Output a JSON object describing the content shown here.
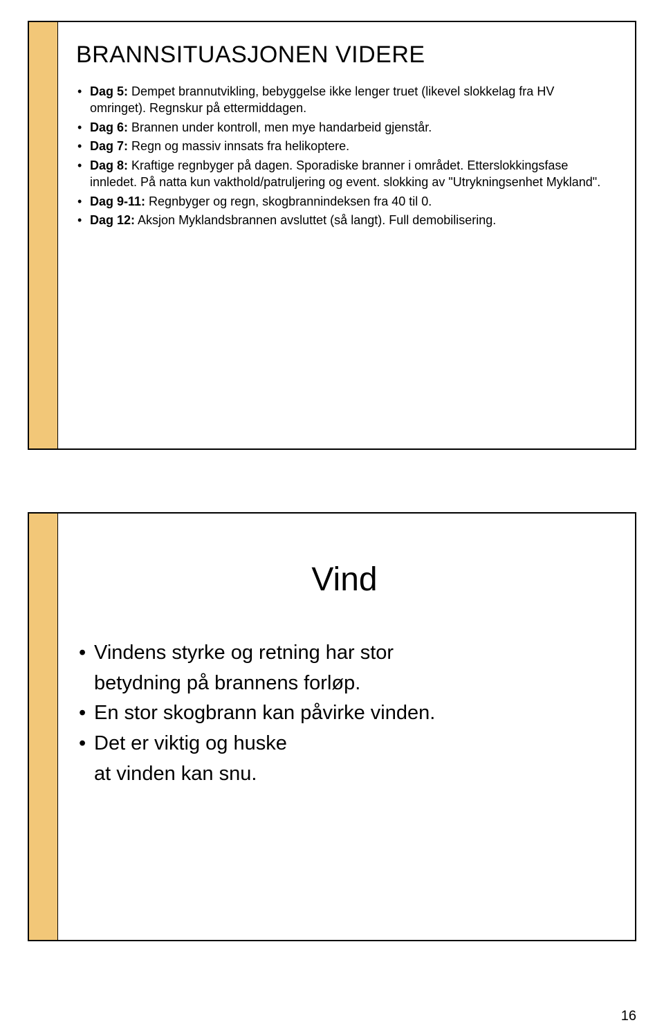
{
  "colors": {
    "accent": "#f2c778",
    "border": "#000000",
    "background": "#ffffff",
    "text": "#000000"
  },
  "slide1": {
    "title": "BRANNSITUASJONEN VIDERE",
    "bullets": [
      {
        "label": "Dag 5:",
        "text": " Dempet brannutvikling, bebyggelse ikke lenger truet (likevel slokkelag fra HV omringet). Regnskur på ettermiddagen."
      },
      {
        "label": "Dag 6:",
        "text": " Brannen under kontroll, men mye handarbeid gjenstår."
      },
      {
        "label": "Dag 7:",
        "text": " Regn og massiv innsats fra helikoptere."
      },
      {
        "label": "Dag 8:",
        "text": " Kraftige regnbyger på dagen. Sporadiske branner i området. Etterslokkingsfase innledet. På natta kun vakthold/patruljering og event. slokking av \"Utrykningsenhet Mykland\"."
      },
      {
        "label": "Dag 9-11:",
        "text": " Regnbyger og regn, skogbrannindeksen fra 40 til 0."
      },
      {
        "label": "Dag 12:",
        "text": " Aksjon Myklandsbrannen avsluttet (så langt). Full demobilisering."
      }
    ]
  },
  "slide2": {
    "title": "Vind",
    "bullets": [
      {
        "bulleted": true,
        "text": "Vindens styrke og retning har stor"
      },
      {
        "bulleted": false,
        "text": "betydning på brannens forløp."
      },
      {
        "bulleted": true,
        "text": "En stor skogbrann kan påvirke vinden."
      },
      {
        "bulleted": true,
        "text": "Det er viktig og huske"
      },
      {
        "bulleted": false,
        "text": "at vinden kan snu."
      }
    ]
  },
  "pageNumber": "16"
}
